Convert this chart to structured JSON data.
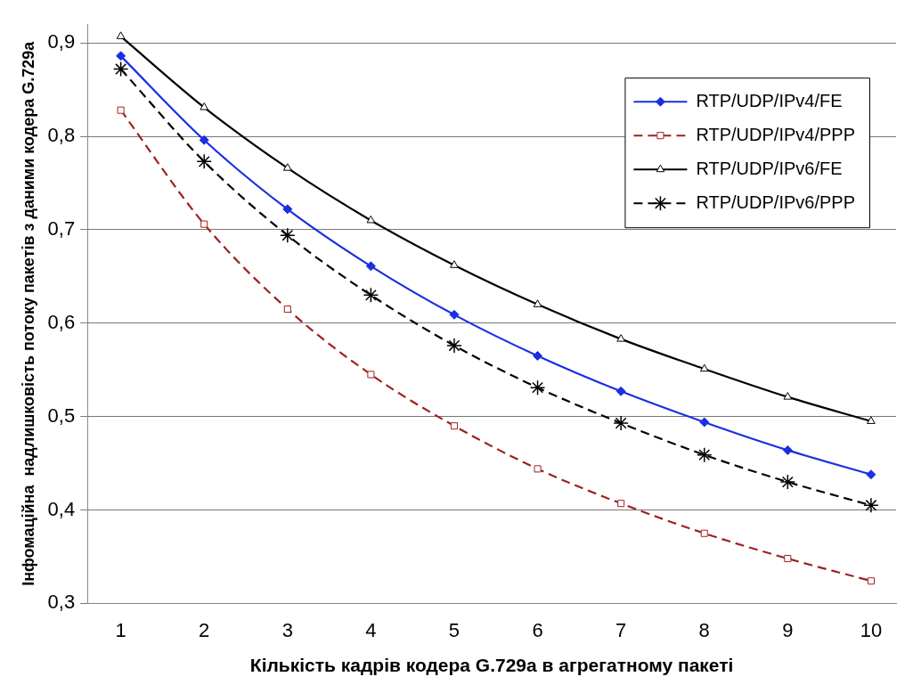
{
  "chart_data": {
    "type": "line",
    "xlabel": "Кількість кадрів кодера G.729a в агрегатному пакеті",
    "ylabel": "Інфомаційна  надлишковість потоку пакетів з даними кодера G.729a",
    "x": [
      1,
      2,
      3,
      4,
      5,
      6,
      7,
      8,
      9,
      10
    ],
    "xlim": [
      0.6,
      10.3
    ],
    "xticks": [
      1,
      2,
      3,
      4,
      5,
      6,
      7,
      8,
      9,
      10
    ],
    "ylim": [
      0.3,
      0.92
    ],
    "yticks": [
      {
        "value": 0.3,
        "label": "0,3"
      },
      {
        "value": 0.4,
        "label": "0,4"
      },
      {
        "value": 0.5,
        "label": "0,5"
      },
      {
        "value": 0.6,
        "label": "0,6"
      },
      {
        "value": 0.7,
        "label": "0,7"
      },
      {
        "value": 0.8,
        "label": "0,8"
      },
      {
        "value": 0.9,
        "label": "0,9"
      }
    ],
    "grid": "y",
    "legend": "top right",
    "series": [
      {
        "name": "RTP/UDP/IPv4/FE",
        "color": "#1a2fe0",
        "marker": "diamond",
        "line_style": "solid",
        "values": [
          0.886,
          0.796,
          0.722,
          0.661,
          0.609,
          0.565,
          0.527,
          0.494,
          0.464,
          0.438
        ]
      },
      {
        "name": "RTP/UDP/IPv4/PPP",
        "color": "#a02020",
        "marker": "square",
        "line_style": "dashed",
        "values": [
          0.828,
          0.706,
          0.615,
          0.545,
          0.49,
          0.444,
          0.407,
          0.375,
          0.348,
          0.324
        ]
      },
      {
        "name": "RTP/UDP/IPv6/FE",
        "color": "#000000",
        "marker": "triangle",
        "line_style": "solid",
        "values": [
          0.907,
          0.831,
          0.766,
          0.71,
          0.662,
          0.62,
          0.583,
          0.551,
          0.521,
          0.495
        ]
      },
      {
        "name": "RTP/UDP/IPv6/PPP",
        "color": "#000000",
        "marker": "cross",
        "line_style": "dashed",
        "values": [
          0.872,
          0.773,
          0.694,
          0.63,
          0.576,
          0.531,
          0.493,
          0.459,
          0.43,
          0.405
        ]
      }
    ]
  }
}
